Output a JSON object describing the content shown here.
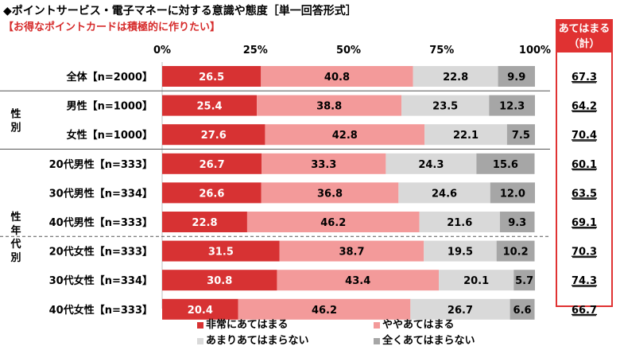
{
  "title": "◆ポイントサービス・電子マネーに対する意識や態度［単一回答形式］",
  "subtitle": "【お得なポイントカードは積極的に作りたい】",
  "summary_header_line1": "あてはまる",
  "summary_header_line2": "（計）",
  "colors": {
    "s1": "#d73233",
    "s2": "#f39a9a",
    "s3": "#d9d9d9",
    "s4": "#a6a6a6",
    "accent": "#e03232"
  },
  "chart_data": {
    "type": "bar",
    "orientation": "horizontal",
    "stacked": true,
    "percent": true,
    "xlim": [
      0,
      100
    ],
    "ticks": [
      "0%",
      "25%",
      "50%",
      "75%",
      "100%"
    ],
    "categories": [
      "全体【n=2000】",
      "男性【n=1000】",
      "女性【n=1000】",
      "20代男性【n=333】",
      "30代男性【n=334】",
      "40代男性【n=333】",
      "20代女性【n=333】",
      "30代女性【n=334】",
      "40代女性【n=333】"
    ],
    "groups": [
      {
        "label": "性別",
        "rows": [
          1,
          2
        ]
      },
      {
        "label": "性年代別",
        "rows": [
          3,
          4,
          5,
          6,
          7,
          8
        ]
      }
    ],
    "series": [
      {
        "name": "非常にあてはまる",
        "values": [
          26.5,
          25.4,
          27.6,
          26.7,
          26.6,
          22.8,
          31.5,
          30.8,
          20.4
        ]
      },
      {
        "name": "ややあてはまる",
        "values": [
          40.8,
          38.8,
          42.8,
          33.3,
          36.8,
          46.2,
          38.7,
          43.4,
          46.2
        ]
      },
      {
        "name": "あまりあてはまらない",
        "values": [
          22.8,
          23.5,
          22.1,
          24.3,
          24.6,
          21.6,
          19.5,
          20.1,
          26.7
        ]
      },
      {
        "name": "全くあてはまらない",
        "values": [
          9.9,
          12.3,
          7.5,
          15.6,
          12.0,
          9.3,
          10.2,
          5.7,
          6.6
        ]
      }
    ],
    "summary": [
      "67.3",
      "64.2",
      "70.4",
      "60.1",
      "63.5",
      "69.1",
      "70.3",
      "74.3",
      "66.7"
    ]
  }
}
